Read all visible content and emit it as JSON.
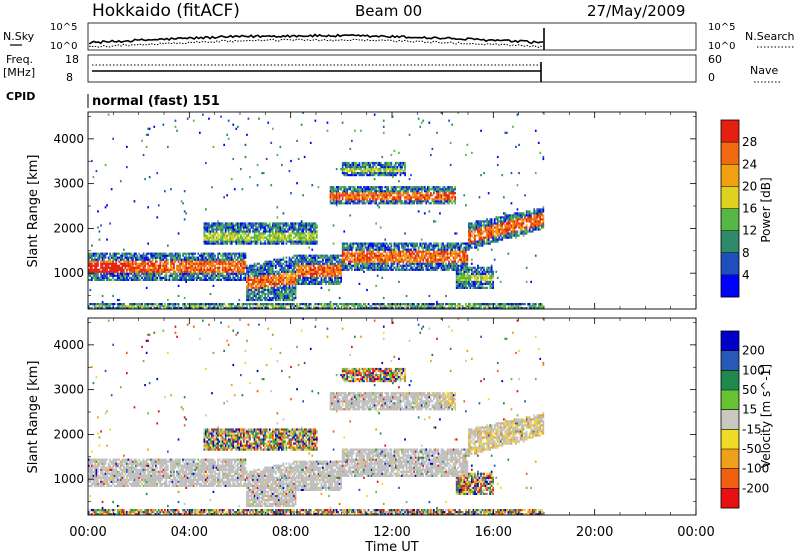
{
  "header": {
    "station": "Hokkaido (fitACF)",
    "beam": "Beam 00",
    "date": "27/May/2009"
  },
  "top_panels": {
    "nsky_label": "N.Sky",
    "nsky_ticks": [
      "10^5",
      "10^0"
    ],
    "nsearch_ticks": [
      "10^5",
      "10^0"
    ],
    "nsearch_label": "N.Search",
    "freq_label_1": "Freq.",
    "freq_label_2": "[MHz]",
    "freq_ticks": [
      "18",
      "8"
    ],
    "nave_ticks": [
      "60",
      "0"
    ],
    "nave_label": "Nave",
    "cpid_label": "CPID",
    "cpid_value": "normal (fast) 151"
  },
  "colors": {
    "power": [
      "#0000ff",
      "#1f4fbf",
      "#2d8a6a",
      "#55b845",
      "#e0d020",
      "#f0a010",
      "#ef6a10",
      "#e62010"
    ],
    "velocity": [
      "#0000c8",
      "#2858b8",
      "#1f8a4e",
      "#66c233",
      "#c8c8c0",
      "#f0dc28",
      "#f0a018",
      "#f06010",
      "#e81010"
    ],
    "ground_scatter": "#bebebe"
  },
  "chart_data": [
    {
      "type": "heatmap",
      "name": "power",
      "ylabel": "Slant Range [km]",
      "yticks": [
        1000,
        2000,
        3000,
        4000
      ],
      "ylim": [
        200,
        4600
      ],
      "xlim": [
        0,
        24
      ],
      "data_end_hour": 18,
      "colorbar_label": "Power [dB]",
      "colorbar_ticks": [
        4,
        8,
        12,
        16,
        20,
        24,
        28
      ],
      "colorbar_range": [
        0,
        32
      ]
    },
    {
      "type": "heatmap",
      "name": "velocity",
      "ylabel": "Slant Range [km]",
      "yticks": [
        1000,
        2000,
        3000,
        4000
      ],
      "ylim": [
        200,
        4600
      ],
      "xlim": [
        0,
        24
      ],
      "data_end_hour": 18,
      "colorbar_label": "Velocity [m s^-1]",
      "colorbar_ticks": [
        "200",
        "100",
        "50",
        "15",
        "-15",
        "-50",
        "-100",
        "-200"
      ]
    }
  ],
  "x_axis": {
    "ticks": [
      "00:00",
      "04:00",
      "08:00",
      "12:00",
      "16:00",
      "20:00",
      "00:00"
    ],
    "label": "Time UT"
  }
}
